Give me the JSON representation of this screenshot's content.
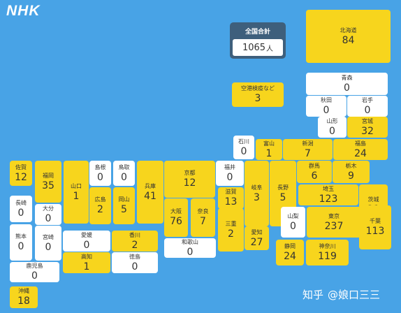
{
  "header": {
    "logo_text": "NHK"
  },
  "total": {
    "label": "全国合計",
    "value": "1065",
    "unit": "人"
  },
  "watermark": {
    "logo": "知乎",
    "handle": "@娘口三三"
  },
  "colors": {
    "background": "#48a3e6",
    "has_cases": "#f7d51d",
    "zero_cases": "#ffffff",
    "total_box": "#3e5f7c"
  },
  "prefectures": [
    {
      "id": "hokkaido",
      "name": "北海道",
      "count": "84"
    },
    {
      "id": "airport",
      "name": "空港検疫など",
      "count": "3"
    },
    {
      "id": "aomori",
      "name": "青森",
      "count": "0"
    },
    {
      "id": "akita",
      "name": "秋田",
      "count": "0"
    },
    {
      "id": "iwate",
      "name": "岩手",
      "count": "0"
    },
    {
      "id": "yamagata",
      "name": "山形",
      "count": "0"
    },
    {
      "id": "miyagi",
      "name": "宮城",
      "count": "32"
    },
    {
      "id": "ishikawa",
      "name": "石川",
      "count": "0"
    },
    {
      "id": "toyama",
      "name": "富山",
      "count": "1"
    },
    {
      "id": "niigata",
      "name": "新潟",
      "count": "7"
    },
    {
      "id": "fukushima",
      "name": "福島",
      "count": "24"
    },
    {
      "id": "saga",
      "name": "佐賀",
      "count": "12"
    },
    {
      "id": "fukuoka",
      "name": "福岡",
      "count": "35"
    },
    {
      "id": "yamaguchi",
      "name": "山口",
      "count": "1"
    },
    {
      "id": "shimane",
      "name": "島根",
      "count": "0"
    },
    {
      "id": "tottori",
      "name": "鳥取",
      "count": "0"
    },
    {
      "id": "hyogo",
      "name": "兵庫",
      "count": "41"
    },
    {
      "id": "kyoto",
      "name": "京都",
      "count": "12"
    },
    {
      "id": "fukui",
      "name": "福井",
      "count": "0"
    },
    {
      "id": "gifu",
      "name": "岐阜",
      "count": "3"
    },
    {
      "id": "nagano",
      "name": "長野",
      "count": "5"
    },
    {
      "id": "gunma",
      "name": "群馬",
      "count": "6"
    },
    {
      "id": "tochigi",
      "name": "栃木",
      "count": "9"
    },
    {
      "id": "ibaraki",
      "name": "茨城",
      "count": "21"
    },
    {
      "id": "nagasaki",
      "name": "長崎",
      "count": "0"
    },
    {
      "id": "oita",
      "name": "大分",
      "count": "0"
    },
    {
      "id": "hiroshima",
      "name": "広島",
      "count": "2"
    },
    {
      "id": "okayama",
      "name": "岡山",
      "count": "5"
    },
    {
      "id": "osaka",
      "name": "大阪",
      "count": "76"
    },
    {
      "id": "nara",
      "name": "奈良",
      "count": "7"
    },
    {
      "id": "shiga",
      "name": "滋賀",
      "count": "13"
    },
    {
      "id": "saitama",
      "name": "埼玉",
      "count": "123"
    },
    {
      "id": "kumamoto",
      "name": "熊本",
      "count": "0"
    },
    {
      "id": "miyazaki",
      "name": "宮崎",
      "count": "0"
    },
    {
      "id": "ehime",
      "name": "愛媛",
      "count": "0"
    },
    {
      "id": "kagawa",
      "name": "香川",
      "count": "2"
    },
    {
      "id": "mie",
      "name": "三重",
      "count": "2"
    },
    {
      "id": "aichi",
      "name": "愛知",
      "count": "27"
    },
    {
      "id": "yamanashi",
      "name": "山梨",
      "count": "0"
    },
    {
      "id": "tokyo",
      "name": "東京",
      "count": "237"
    },
    {
      "id": "chiba",
      "name": "千葉",
      "count": "113"
    },
    {
      "id": "wakayama",
      "name": "和歌山",
      "count": "0"
    },
    {
      "id": "kochi",
      "name": "高知",
      "count": "1"
    },
    {
      "id": "tokushima",
      "name": "徳島",
      "count": "0"
    },
    {
      "id": "shizuoka",
      "name": "静岡",
      "count": "24"
    },
    {
      "id": "kanagawa",
      "name": "神奈川",
      "count": "119"
    },
    {
      "id": "kagoshima",
      "name": "鹿児島",
      "count": "0"
    },
    {
      "id": "okinawa",
      "name": "沖縄",
      "count": "18"
    }
  ]
}
